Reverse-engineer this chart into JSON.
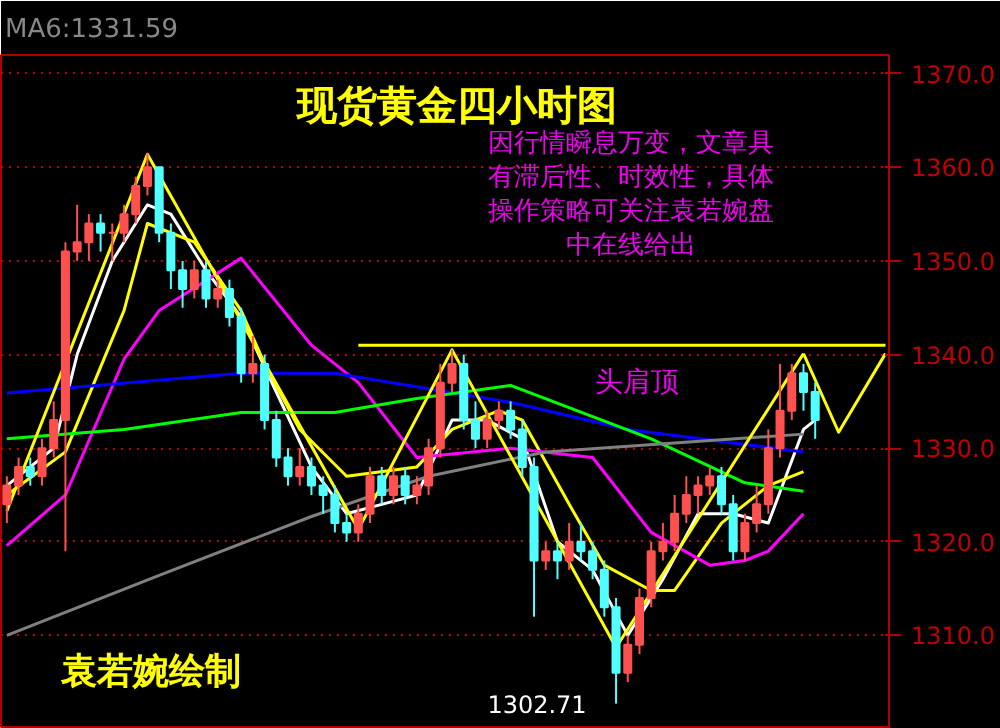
{
  "chart_data": {
    "type": "candlestick",
    "title": "现货黄金四小时图",
    "categories": [
      null,
      null,
      null,
      null,
      null,
      null,
      null,
      null,
      null,
      null,
      null,
      null,
      null,
      null,
      null,
      null,
      null,
      null,
      null,
      null,
      null,
      null,
      null,
      null,
      null,
      null,
      null,
      null,
      null,
      null,
      null,
      null,
      null,
      null,
      null,
      null,
      null,
      null,
      null,
      null,
      null,
      null,
      null,
      null,
      null,
      null,
      null,
      null,
      null,
      null,
      null,
      null,
      null,
      null,
      null,
      null,
      null,
      null,
      null,
      null,
      null,
      null,
      null,
      null,
      null,
      null,
      null,
      null,
      null,
      null,
      null,
      null,
      null,
      null,
      null,
      null
    ],
    "ohlc": [
      [
        1324,
        1327,
        1322,
        1326
      ],
      [
        1326,
        1329,
        1325,
        1328
      ],
      [
        1328,
        1329,
        1326,
        1327
      ],
      [
        1327,
        1331,
        1326,
        1330
      ],
      [
        1330,
        1335,
        1329,
        1333
      ],
      [
        1333,
        1352,
        1319,
        1351
      ],
      [
        1351,
        1356,
        1350,
        1352
      ],
      [
        1352,
        1355,
        1350,
        1354
      ],
      [
        1354,
        1355,
        1351,
        1353
      ],
      [
        1353,
        1354,
        1350,
        1353
      ],
      [
        1353,
        1356,
        1352,
        1355
      ],
      [
        1355,
        1359,
        1354,
        1358
      ],
      [
        1358,
        1361.5,
        1357,
        1360
      ],
      [
        1360,
        1360,
        1352,
        1353
      ],
      [
        1353,
        1354,
        1347,
        1349
      ],
      [
        1349,
        1350,
        1345,
        1347
      ],
      [
        1347,
        1350,
        1346,
        1349
      ],
      [
        1349,
        1350,
        1345,
        1346
      ],
      [
        1346,
        1348,
        1345,
        1347
      ],
      [
        1347,
        1348,
        1343,
        1344
      ],
      [
        1344,
        1345,
        1337,
        1338
      ],
      [
        1338,
        1342,
        1337,
        1339
      ],
      [
        1339,
        1340,
        1332,
        1333
      ],
      [
        1333,
        1334,
        1328,
        1329
      ],
      [
        1329,
        1330,
        1326,
        1327
      ],
      [
        1327,
        1330,
        1326,
        1328
      ],
      [
        1328,
        1329,
        1325,
        1326
      ],
      [
        1326,
        1327,
        1323,
        1325
      ],
      [
        1325,
        1326,
        1321,
        1322
      ],
      [
        1322,
        1323,
        1320,
        1321
      ],
      [
        1321,
        1324,
        1320,
        1323
      ],
      [
        1323,
        1328,
        1322,
        1327
      ],
      [
        1327,
        1328,
        1324,
        1325
      ],
      [
        1325,
        1328,
        1324,
        1327
      ],
      [
        1327,
        1328,
        1324,
        1325
      ],
      [
        1325,
        1327,
        1324,
        1326
      ],
      [
        1326,
        1331,
        1325,
        1330
      ],
      [
        1330,
        1339,
        1329,
        1337
      ],
      [
        1337,
        1340.5,
        1336,
        1339
      ],
      [
        1339,
        1340,
        1332,
        1333
      ],
      [
        1333,
        1335,
        1330,
        1331
      ],
      [
        1331,
        1334,
        1330,
        1333
      ],
      [
        1333,
        1335,
        1332,
        1334
      ],
      [
        1334,
        1335,
        1331,
        1332
      ],
      [
        1332,
        1333,
        1327,
        1328
      ],
      [
        1328,
        1329,
        1312,
        1318
      ],
      [
        1318,
        1320,
        1317,
        1319
      ],
      [
        1319,
        1320,
        1316,
        1318
      ],
      [
        1318,
        1322,
        1317,
        1320
      ],
      [
        1320,
        1322,
        1318,
        1319
      ],
      [
        1319,
        1320,
        1316,
        1317
      ],
      [
        1317,
        1318,
        1312,
        1313
      ],
      [
        1313,
        1314,
        1302.71,
        1306
      ],
      [
        1306,
        1310,
        1305,
        1309
      ],
      [
        1309,
        1315,
        1308,
        1314
      ],
      [
        1314,
        1320,
        1313,
        1319
      ],
      [
        1319,
        1322,
        1318,
        1320
      ],
      [
        1320,
        1325,
        1319,
        1323
      ],
      [
        1323,
        1327,
        1322,
        1325
      ],
      [
        1325,
        1327,
        1323,
        1326
      ],
      [
        1326,
        1328,
        1325,
        1327
      ],
      [
        1327,
        1328,
        1323,
        1324
      ],
      [
        1324,
        1325,
        1318,
        1319
      ],
      [
        1319,
        1323,
        1318,
        1322
      ],
      [
        1322,
        1326,
        1321,
        1324
      ],
      [
        1324,
        1332,
        1323,
        1330
      ],
      [
        1330,
        1339,
        1329,
        1334
      ],
      [
        1334,
        1339,
        1333,
        1338
      ],
      [
        1338,
        1339,
        1334,
        1336
      ],
      [
        1336,
        1337,
        1331,
        1333
      ],
      null,
      null,
      null,
      null,
      null,
      null
    ],
    "colors": [
      "#ff5050",
      "#ff5050",
      "#50ffff",
      "#ff5050",
      "#ff5050",
      "#ff5050",
      "#ff5050",
      "#ff5050",
      "#50ffff",
      "#ff5050",
      "#ff5050",
      "#ff5050",
      "#ff5050",
      "#50ffff",
      "#50ffff",
      "#50ffff",
      "#ff5050",
      "#50ffff",
      "#ff5050",
      "#50ffff",
      "#50ffff",
      "#ff5050",
      "#50ffff",
      "#50ffff",
      "#50ffff",
      "#ff5050",
      "#50ffff",
      "#50ffff",
      "#50ffff",
      "#50ffff",
      "#ff5050",
      "#ff5050",
      "#50ffff",
      "#ff5050",
      "#50ffff",
      "#ff5050",
      "#ff5050",
      "#ff5050",
      "#ff5050",
      "#50ffff",
      "#50ffff",
      "#ff5050",
      "#ff5050",
      "#50ffff",
      "#50ffff",
      "#50ffff",
      "#ff5050",
      "#50ffff",
      "#ff5050",
      "#50ffff",
      "#50ffff",
      "#50ffff",
      "#50ffff",
      "#ff5050",
      "#ff5050",
      "#ff5050",
      "#ff5050",
      "#ff5050",
      "#ff5050",
      "#ff5050",
      "#ff5050",
      "#50ffff",
      "#50ffff",
      "#ff5050",
      "#ff5050",
      "#ff5050",
      "#ff5050",
      "#ff5050",
      "#50ffff",
      "#50ffff",
      "#000000",
      "#000000",
      "#000000",
      "#000000",
      "#000000",
      "#000000"
    ],
    "series": [
      {
        "type": "line",
        "color": "#ffffff",
        "values": [
          1326,
          null,
          null,
          null,
          1330,
          null,
          1340,
          null,
          null,
          1350,
          null,
          null,
          1356,
          null,
          1355,
          null,
          null,
          1349,
          null,
          null,
          1344,
          null,
          null,
          1336,
          null,
          null,
          1328,
          null,
          null,
          1323,
          null,
          null,
          1324,
          null,
          null,
          1325,
          null,
          null,
          1333,
          null,
          null,
          1333,
          null,
          null,
          1331,
          null,
          null,
          1320,
          null,
          null,
          1317,
          null,
          null,
          1310,
          null,
          null,
          1316,
          null,
          null,
          1323,
          null,
          null,
          1323,
          null,
          null,
          1322,
          null,
          null,
          1332,
          1333,
          null,
          null,
          null,
          null,
          null,
          null
        ]
      },
      {
        "type": "line",
        "color": "#ffff00",
        "values": [
          1325,
          null,
          null,
          null,
          null,
          1329.6,
          null,
          null,
          null,
          null,
          1344.7,
          null,
          1354,
          null,
          null,
          null,
          1352,
          null,
          null,
          null,
          1344.7,
          null,
          1339,
          null,
          null,
          1332,
          null,
          null,
          null,
          1327,
          null,
          null,
          null,
          null,
          null,
          1328,
          null,
          null,
          1332,
          null,
          null,
          null,
          1334,
          null,
          1333,
          null,
          null,
          null,
          1324,
          null,
          null,
          1317.5,
          null,
          null,
          null,
          1314.8,
          null,
          1314.8,
          null,
          null,
          null,
          1322,
          null,
          null,
          null,
          1326,
          null,
          null,
          1327.5,
          null,
          null,
          null,
          null,
          null,
          null,
          null
        ]
      },
      {
        "type": "line",
        "color": "#ff00ff",
        "values": [
          1319.6,
          null,
          null,
          null,
          null,
          1325,
          null,
          null,
          null,
          null,
          1339.5,
          null,
          null,
          1344.7,
          null,
          null,
          null,
          null,
          null,
          null,
          1350.3,
          null,
          null,
          null,
          null,
          null,
          1341,
          null,
          null,
          null,
          1337,
          null,
          null,
          null,
          null,
          1329,
          null,
          null,
          null,
          null,
          null,
          null,
          null,
          1330,
          null,
          null,
          null,
          null,
          null,
          null,
          1329,
          null,
          null,
          null,
          null,
          1321,
          null,
          null,
          null,
          null,
          1317.5,
          null,
          null,
          1318,
          null,
          1319,
          null,
          null,
          1323,
          null,
          null,
          null,
          null,
          null,
          null,
          null
        ]
      },
      {
        "type": "line",
        "color": "#0000ff",
        "values": [
          1335.9,
          null,
          null,
          null,
          null,
          null,
          null,
          null,
          null,
          null,
          null,
          null,
          null,
          null,
          null,
          null,
          null,
          null,
          null,
          null,
          1338,
          null,
          null,
          null,
          null,
          null,
          null,
          null,
          1338,
          null,
          null,
          null,
          null,
          null,
          null,
          null,
          null,
          null,
          null,
          null,
          null,
          null,
          null,
          1334.9,
          null,
          null,
          null,
          null,
          null,
          null,
          null,
          null,
          null,
          1332,
          null,
          null,
          null,
          null,
          null,
          null,
          null,
          null,
          null,
          null,
          null,
          null,
          null,
          null,
          1329.6,
          null,
          null,
          null,
          null,
          null,
          null,
          null
        ]
      },
      {
        "type": "line",
        "color": "#00ff00",
        "values": [
          1331,
          null,
          null,
          null,
          null,
          null,
          null,
          null,
          null,
          null,
          1332,
          null,
          null,
          null,
          null,
          null,
          null,
          null,
          null,
          null,
          1333.8,
          null,
          null,
          null,
          null,
          null,
          null,
          null,
          1333.8,
          null,
          null,
          null,
          null,
          null,
          null,
          1335.3,
          null,
          null,
          null,
          null,
          null,
          null,
          null,
          1336.7,
          null,
          null,
          null,
          null,
          null,
          null,
          null,
          null,
          null,
          null,
          null,
          1331,
          null,
          null,
          null,
          null,
          null,
          null,
          null,
          1326.3,
          null,
          null,
          null,
          null,
          1325.4,
          null,
          null,
          null,
          null,
          null,
          null,
          null
        ]
      },
      {
        "type": "line",
        "color": "#808080",
        "values": [
          1310,
          null,
          null,
          null,
          null,
          null,
          null,
          null,
          null,
          null,
          null,
          null,
          null,
          1316.4,
          null,
          null,
          null,
          null,
          null,
          null,
          null,
          null,
          null,
          null,
          null,
          null,
          1322.7,
          null,
          null,
          null,
          null,
          null,
          null,
          null,
          null,
          null,
          1327,
          null,
          null,
          null,
          null,
          null,
          null,
          null,
          null,
          null,
          1329.6,
          null,
          null,
          null,
          null,
          null,
          null,
          null,
          null,
          null,
          null,
          null,
          null,
          null,
          null,
          null,
          null,
          null,
          null,
          null,
          null,
          null,
          1331.5,
          null,
          null,
          null,
          null,
          null,
          null,
          null
        ]
      },
      {
        "type": "line",
        "color": "#ffff00",
        "values": [
          1323.3,
          null,
          null,
          null,
          null,
          null,
          null,
          null,
          null,
          null,
          null,
          null,
          1361.4,
          null,
          null,
          null,
          null,
          null,
          null,
          null,
          null,
          null,
          null,
          null,
          null,
          null,
          null,
          null,
          null,
          null,
          1321.3,
          null,
          null,
          null,
          null,
          null,
          null,
          null,
          1340.5,
          null,
          null,
          null,
          null,
          null,
          null,
          null,
          null,
          null,
          null,
          null,
          null,
          null,
          1308.7,
          null,
          null,
          null,
          null,
          null,
          null,
          null,
          null,
          null,
          null,
          null,
          null,
          null,
          null,
          null,
          1340.1,
          null,
          null,
          null,
          null,
          null,
          null,
          null
        ]
      },
      {
        "type": "line",
        "color": "#ffff00",
        "values": [
          null,
          null,
          null,
          null,
          null,
          null,
          null,
          null,
          null,
          null,
          null,
          null,
          null,
          null,
          null,
          null,
          null,
          null,
          null,
          null,
          null,
          null,
          null,
          null,
          null,
          null,
          null,
          null,
          null,
          null,
          null,
          null,
          null,
          null,
          null,
          null,
          null,
          null,
          null,
          null,
          null,
          null,
          null,
          null,
          null,
          null,
          null,
          null,
          null,
          null,
          null,
          null,
          null,
          null,
          null,
          null,
          null,
          null,
          null,
          null,
          null,
          null,
          null,
          null,
          null,
          null,
          null,
          null,
          1340.1,
          null,
          null,
          1331.7,
          null,
          null,
          null,
          1340.1
        ]
      },
      {
        "type": "line",
        "color": "#ffff00",
        "values": [
          null,
          null,
          null,
          null,
          null,
          null,
          null,
          null,
          null,
          null,
          null,
          null,
          null,
          null,
          null,
          null,
          null,
          null,
          null,
          null,
          null,
          null,
          null,
          null,
          null,
          null,
          null,
          null,
          null,
          null,
          1341,
          null,
          null,
          null,
          null,
          null,
          null,
          null,
          null,
          null,
          null,
          null,
          null,
          null,
          null,
          null,
          null,
          null,
          null,
          null,
          null,
          null,
          null,
          null,
          null,
          null,
          null,
          null,
          null,
          null,
          null,
          null,
          null,
          null,
          null,
          null,
          null,
          null,
          null,
          null,
          null,
          null,
          null,
          null,
          null,
          1341
        ]
      }
    ],
    "ylim": [
      1300,
      1372
    ],
    "yticks": [
      {
        "value": 1310,
        "label": "1310.0"
      },
      {
        "value": 1320,
        "label": "1320.0"
      },
      {
        "value": 1330,
        "label": "1330.0"
      },
      {
        "value": 1340,
        "label": "1340.0"
      },
      {
        "value": 1350,
        "label": "1350.0"
      },
      {
        "value": 1360,
        "label": "1360.0"
      },
      {
        "value": 1370,
        "label": "1370.0"
      }
    ],
    "grid": "y",
    "tick_labels": "y",
    "annotations": [
      "MA6:1331.59",
      "因行情瞬息万变，文章具有滞后性、时效性，具体操作策略可关注袁若婉盘中在线给出",
      "头肩顶",
      "袁若婉绘制",
      "1302.71"
    ]
  }
}
